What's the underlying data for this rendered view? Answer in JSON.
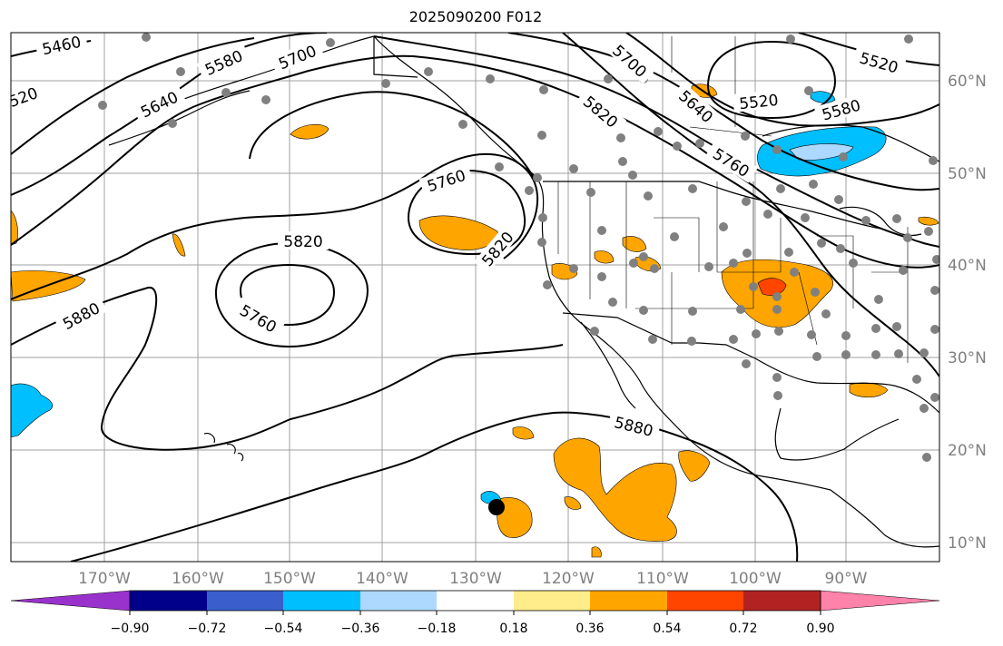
{
  "title": "2025090200 F012",
  "map": {
    "lon_ticks": [
      "170°W",
      "160°W",
      "150°W",
      "140°W",
      "130°W",
      "120°W",
      "110°W",
      "100°W",
      "90°W"
    ],
    "lat_ticks": [
      "60°N",
      "50°N",
      "40°N",
      "30°N",
      "20°N",
      "10°N"
    ],
    "contour_labels": [
      "5460",
      "5580",
      "5700",
      "5640",
      "520",
      "5700",
      "5640",
      "5520",
      "5520",
      "5580",
      "5820",
      "5760",
      "5760",
      "5820",
      "5820",
      "5760",
      "5880",
      "5880"
    ],
    "colors": {
      "contour": "#000000",
      "grid": "#a0a0a0",
      "station": "#808080",
      "positive_weak": "#ffa500",
      "positive_strong": "#ff4500",
      "negative": "#00bfff",
      "negative_weak": "#add8ff"
    }
  },
  "colorbar": {
    "tick_labels": [
      "−0.90",
      "−0.72",
      "−0.54",
      "−0.36",
      "−0.18",
      "0.18",
      "0.36",
      "0.54",
      "0.72",
      "0.90"
    ],
    "colors": [
      "#9932cc",
      "#00008b",
      "#3a5fcd",
      "#00bfff",
      "#add8ff",
      "#ffffff",
      "#ffec8b",
      "#ffa500",
      "#ff4500",
      "#b22222",
      "#ff82ab"
    ]
  }
}
